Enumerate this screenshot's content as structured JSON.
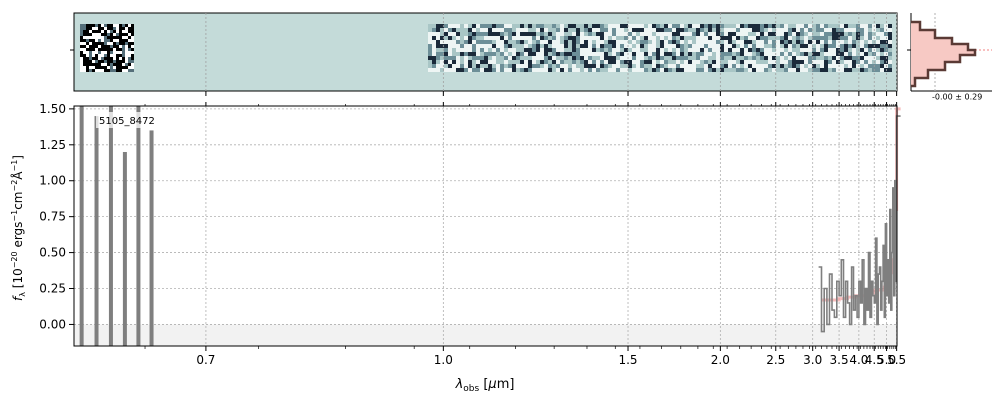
{
  "chart_data": {
    "type": "line",
    "object_label": "5105_8472",
    "xlabel": "λobs [μm]",
    "ylabel": "fλ [10−20 ergs−1cm−2Å−1]",
    "xlim": [
      0.6,
      5.52
    ],
    "ylim": [
      -0.15,
      1.52
    ],
    "x_scale": "reciprocal (axis spacing follows 1/λ)",
    "xticks": [
      0.7,
      1.0,
      1.5,
      2.0,
      2.5,
      3.0,
      3.5,
      4.0,
      4.5,
      5.0,
      5.5
    ],
    "xtick_labels": [
      "0.7",
      "1.0",
      "1.5",
      "2.0",
      "2.5",
      "3.0",
      "3.5",
      "4.0",
      "4.5",
      "5.0",
      "5.5"
    ],
    "yticks": [
      0.0,
      0.25,
      0.5,
      0.75,
      1.0,
      1.25,
      1.5
    ],
    "ytick_labels": [
      "0.00",
      "0.25",
      "0.50",
      "0.75",
      "1.00",
      "1.25",
      "1.50"
    ],
    "grid": true,
    "series": [
      {
        "role": "observed-flux",
        "color": "#7f7f7f",
        "x": [
          3.1,
          3.15,
          3.2,
          3.25,
          3.3,
          3.35,
          3.4,
          3.45,
          3.5,
          3.55,
          3.6,
          3.65,
          3.7,
          3.75,
          3.8,
          3.85,
          3.9,
          3.95,
          4.0,
          4.05,
          4.1,
          4.15,
          4.2,
          4.25,
          4.3,
          4.35,
          4.4,
          4.45,
          4.5,
          4.55,
          4.6,
          4.65,
          4.7,
          4.75,
          4.8,
          4.85,
          4.9,
          4.95,
          5.0,
          5.05,
          5.1,
          5.15,
          5.2,
          5.25,
          5.3,
          5.35,
          5.4,
          5.45,
          5.5
        ],
        "y": [
          0.4,
          -0.05,
          0.25,
          0.0,
          0.35,
          0.1,
          0.05,
          0.3,
          0.2,
          0.45,
          0.05,
          0.3,
          0.15,
          0.0,
          0.4,
          0.1,
          0.2,
          0.05,
          0.3,
          0.15,
          0.45,
          0.0,
          0.25,
          0.1,
          0.5,
          0.05,
          0.3,
          0.2,
          0.15,
          0.6,
          0.0,
          0.35,
          0.4,
          0.1,
          0.3,
          0.55,
          0.05,
          0.7,
          0.2,
          0.45,
          0.15,
          0.8,
          0.1,
          0.5,
          0.95,
          0.2,
          1.0,
          0.3,
          1.45
        ]
      },
      {
        "role": "model-continuum",
        "color": "#f4a0a0",
        "x": [
          3.15,
          3.3,
          3.5,
          3.7,
          3.9,
          4.1,
          4.3,
          4.5,
          4.7,
          4.9,
          5.0,
          5.1,
          5.2,
          5.3,
          5.4,
          5.45,
          5.5
        ],
        "y": [
          0.17,
          0.17,
          0.18,
          0.19,
          0.2,
          0.2,
          0.22,
          0.24,
          0.24,
          0.26,
          0.27,
          0.3,
          0.36,
          0.45,
          0.55,
          0.8,
          1.5
        ]
      }
    ],
    "short_wavelength_flux": {
      "color": "#7f7f7f",
      "x": [
        0.605,
        0.615,
        0.625,
        0.635,
        0.645,
        0.655,
        0.665
      ],
      "y": [
        1.52,
        1.45,
        1.52,
        1.2,
        1.52,
        1.35,
        -0.15
      ]
    },
    "side_panel_label": "-0.00 ± 0.29"
  }
}
